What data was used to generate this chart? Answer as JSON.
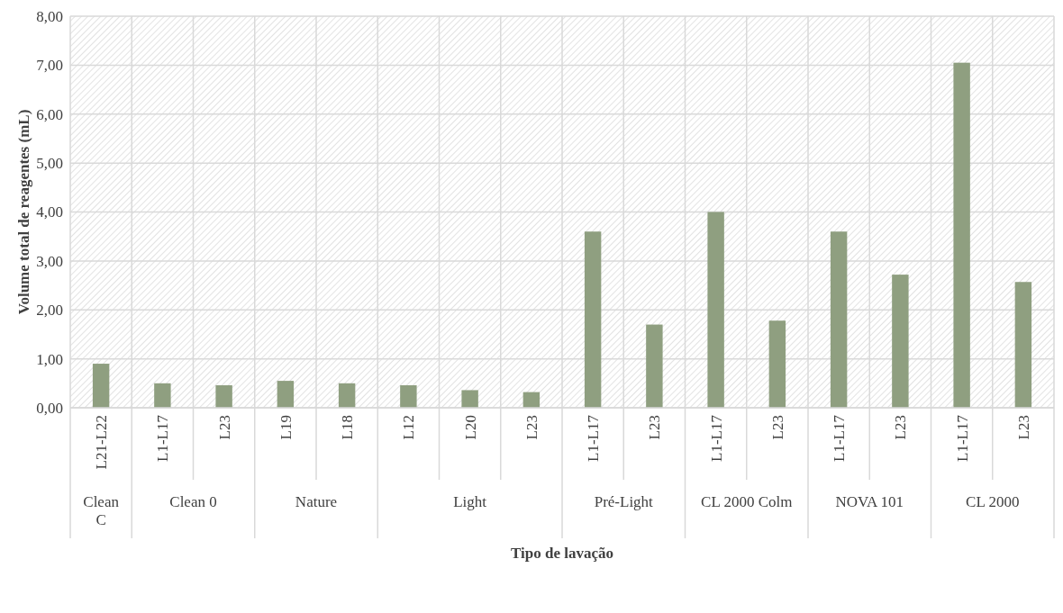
{
  "chart_data": {
    "type": "bar",
    "xlabel": "Tipo de lavação",
    "ylabel": "Volume total de reagentes (mL)",
    "categories": [
      "L21-L22",
      "L1-L17",
      "L23",
      "L19",
      "L18",
      "L12",
      "L20",
      "L23",
      "L1-L17",
      "L23",
      "L1-L17",
      "L23",
      "L1-L17",
      "L23",
      "L1-L17",
      "L23"
    ],
    "annotations": [
      "Clean C",
      "Clean 0",
      "Nature",
      "Light",
      "Pré-Light",
      "CL 2000 Colm",
      "NOVA 101",
      "CL 2000"
    ],
    "series": [
      {
        "color": "#8f9f80",
        "values": [
          0.9,
          null,
          null,
          null,
          null,
          null,
          null,
          null,
          null,
          null,
          null,
          null,
          null,
          null,
          null,
          null
        ]
      },
      {
        "color": "#8f9f80",
        "values": [
          null,
          0.5,
          0.46,
          null,
          null,
          null,
          null,
          null,
          null,
          null,
          null,
          null,
          null,
          null,
          null,
          null
        ]
      },
      {
        "color": "#8f9f80",
        "values": [
          null,
          null,
          null,
          0.55,
          0.5,
          null,
          null,
          null,
          null,
          null,
          null,
          null,
          null,
          null,
          null,
          null
        ]
      },
      {
        "color": "#8f9f80",
        "values": [
          null,
          null,
          null,
          null,
          null,
          0.46,
          0.36,
          0.32,
          null,
          null,
          null,
          null,
          null,
          null,
          null,
          null
        ]
      },
      {
        "color": "#8f9f80",
        "values": [
          null,
          null,
          null,
          null,
          null,
          null,
          null,
          null,
          3.6,
          1.7,
          null,
          null,
          null,
          null,
          null,
          null
        ]
      },
      {
        "color": "#8f9f80",
        "values": [
          null,
          null,
          null,
          null,
          null,
          null,
          null,
          null,
          null,
          null,
          4.0,
          1.78,
          null,
          null,
          null,
          null
        ]
      },
      {
        "color": "#8f9f80",
        "values": [
          null,
          null,
          null,
          null,
          null,
          null,
          null,
          null,
          null,
          null,
          null,
          null,
          3.6,
          2.72,
          null,
          null
        ]
      },
      {
        "color": "#8f9f80",
        "values": [
          null,
          null,
          null,
          null,
          null,
          null,
          null,
          null,
          null,
          null,
          null,
          null,
          null,
          null,
          7.05,
          2.57
        ]
      }
    ],
    "ylim": [
      0,
      8
    ],
    "yticks": [
      {
        "value": 0,
        "label": "0,00"
      },
      {
        "value": 1,
        "label": "1,00"
      },
      {
        "value": 2,
        "label": "2,00"
      },
      {
        "value": 3,
        "label": "3,00"
      },
      {
        "value": 4,
        "label": "4,00"
      },
      {
        "value": 5,
        "label": "5,00"
      },
      {
        "value": 6,
        "label": "6,00"
      },
      {
        "value": 7,
        "label": "7,00"
      },
      {
        "value": 8,
        "label": "8,00"
      }
    ],
    "grid": true
  }
}
